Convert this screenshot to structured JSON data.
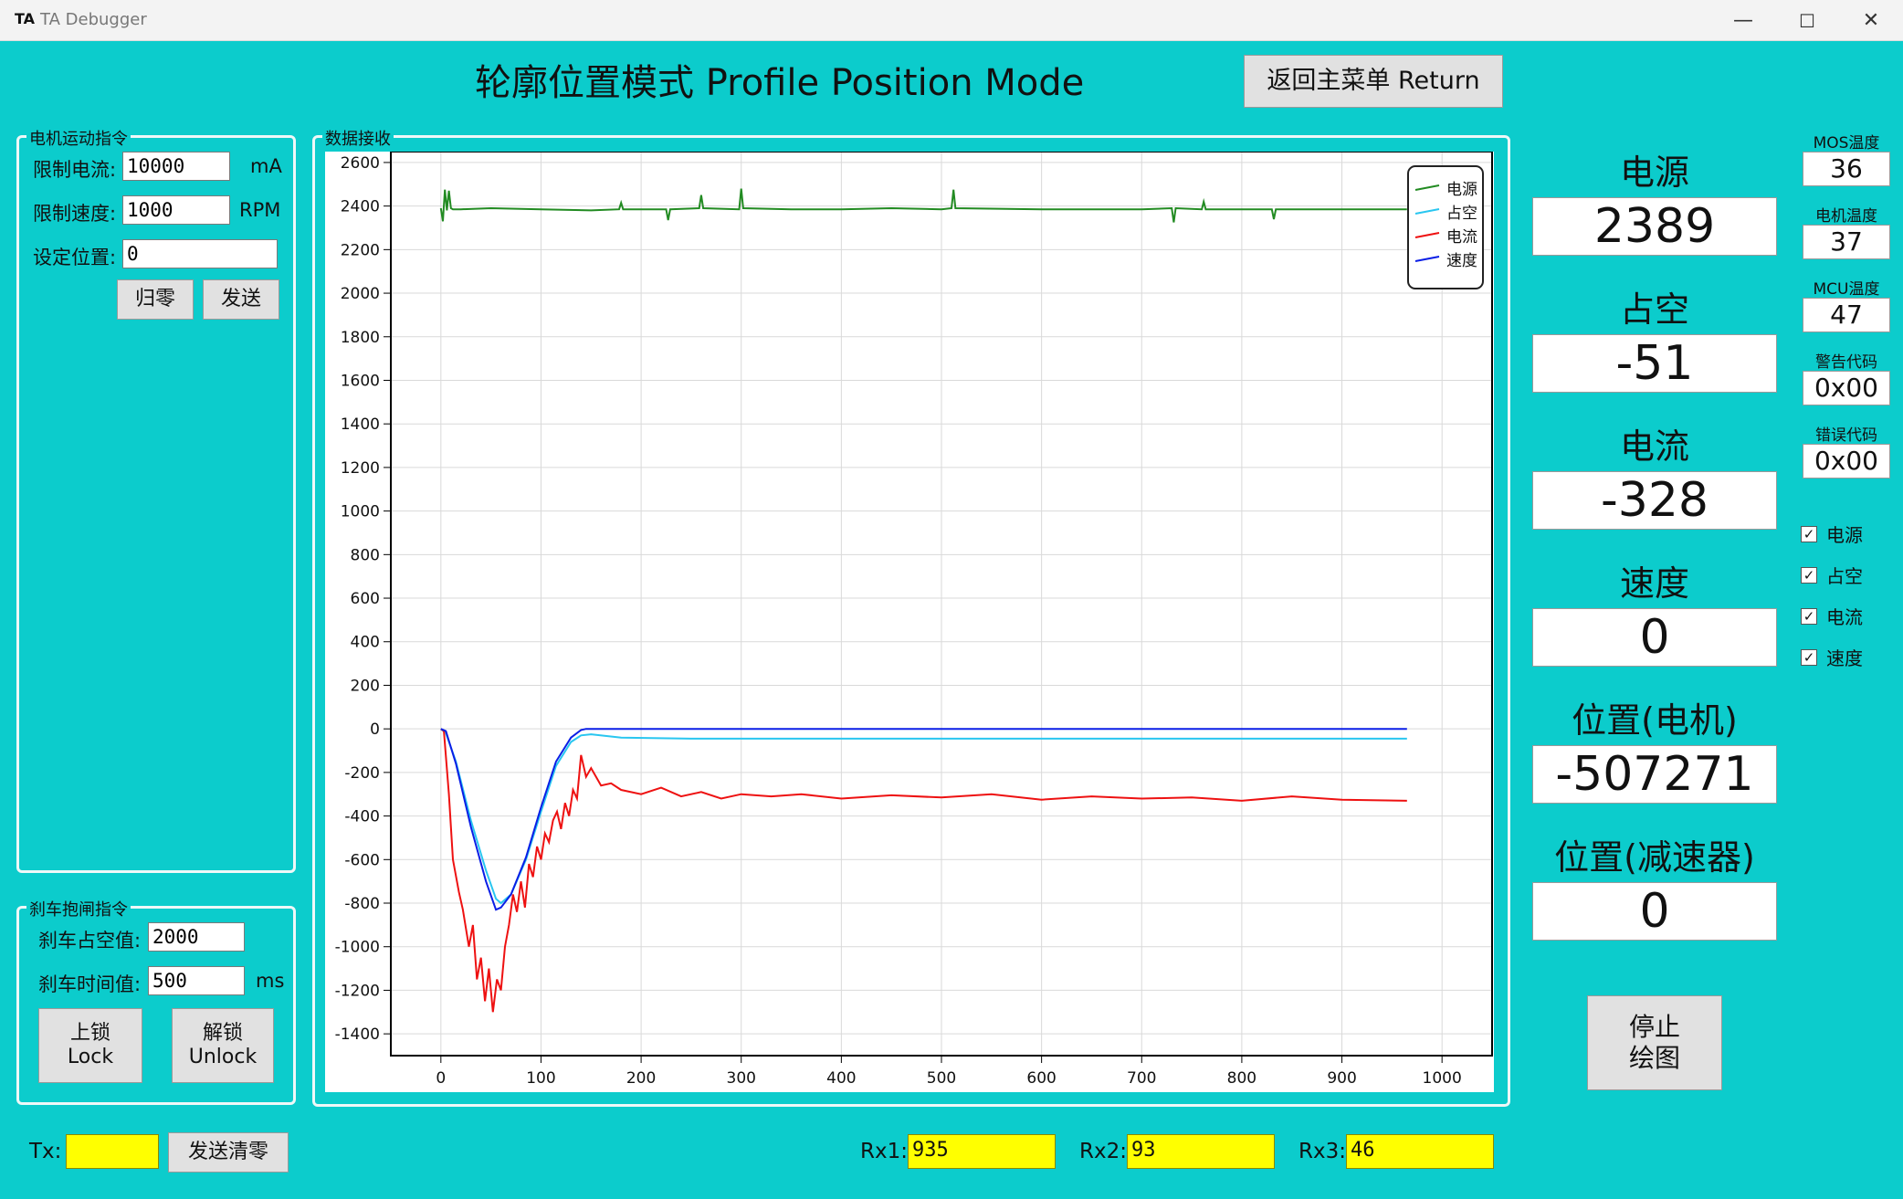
{
  "window": {
    "logo": "TA",
    "title": "TA Debugger",
    "minimize": "—",
    "maximize": "☐",
    "close": "✕"
  },
  "header": {
    "title": "轮廓位置模式 Profile Position Mode",
    "return_button": "返回主菜单 Return"
  },
  "motor_cmd": {
    "group_title": "电机运动指令",
    "current_limit_label": "限制电流:",
    "current_limit_value": "10000",
    "current_unit": "mA",
    "speed_limit_label": "限制速度:",
    "speed_limit_value": "1000",
    "speed_unit": "RPM",
    "position_label": "设定位置:",
    "position_value": "0",
    "zero_button": "归零",
    "send_button": "发送"
  },
  "brake_cmd": {
    "group_title": "刹车抱闸指令",
    "duty_label": "刹车占空值:",
    "duty_value": "2000",
    "time_label": "刹车时间值:",
    "time_value": "500",
    "time_unit": "ms",
    "lock_button_cn": "上锁",
    "lock_button_en": "Lock",
    "unlock_button_cn": "解锁",
    "unlock_button_en": "Unlock"
  },
  "data_group": {
    "title": "数据接收"
  },
  "readouts": [
    {
      "label": "电源",
      "value": "2389"
    },
    {
      "label": "占空",
      "value": "-51"
    },
    {
      "label": "电流",
      "value": "-328"
    },
    {
      "label": "速度",
      "value": "0"
    },
    {
      "label": "位置(电机)",
      "value": "-507271"
    },
    {
      "label": "位置(减速器)",
      "value": "0"
    }
  ],
  "status": [
    {
      "label": "MOS温度",
      "value": "36"
    },
    {
      "label": "电机温度",
      "value": "37"
    },
    {
      "label": "MCU温度",
      "value": "47"
    },
    {
      "label": "警告代码",
      "value": "0x00"
    },
    {
      "label": "错误代码",
      "value": "0x00"
    }
  ],
  "checkboxes": [
    {
      "label": "电源",
      "checked": true
    },
    {
      "label": "占空",
      "checked": true
    },
    {
      "label": "电流",
      "checked": true
    },
    {
      "label": "速度",
      "checked": true
    }
  ],
  "stop_button": {
    "line1": "停止",
    "line2": "绘图"
  },
  "bottom": {
    "tx_label": "Tx:",
    "tx_value": "",
    "clear_button": "发送清零",
    "rx1_label": "Rx1:",
    "rx1_value": "935",
    "rx2_label": "Rx2:",
    "rx2_value": "93",
    "rx3_label": "Rx3:",
    "rx3_value": "46"
  },
  "chart_data": {
    "type": "line",
    "xlim": [
      -50,
      1050
    ],
    "ylim": [
      -1500,
      2650
    ],
    "xticks": [
      0,
      100,
      200,
      300,
      400,
      500,
      600,
      700,
      800,
      900,
      1000
    ],
    "yticks": [
      2600,
      2400,
      2200,
      2000,
      1800,
      1600,
      1400,
      1200,
      1000,
      800,
      600,
      400,
      200,
      0,
      -200,
      -400,
      -600,
      -800,
      -1000,
      -1200,
      -1400
    ],
    "grid": true,
    "legend_position": "top-right",
    "series": [
      {
        "name": "电源",
        "color": "#228b22",
        "x": [
          0,
          2,
          4,
          6,
          8,
          10,
          12,
          20,
          50,
          100,
          150,
          178,
          180,
          182,
          200,
          225,
          227,
          229,
          258,
          260,
          262,
          298,
          300,
          302,
          350,
          400,
          450,
          500,
          510,
          512,
          514,
          600,
          650,
          700,
          730,
          732,
          734,
          760,
          762,
          764,
          830,
          832,
          834,
          900,
          965
        ],
        "values": [
          2390,
          2330,
          2475,
          2380,
          2470,
          2390,
          2385,
          2385,
          2390,
          2385,
          2380,
          2385,
          2415,
          2385,
          2385,
          2385,
          2335,
          2385,
          2390,
          2450,
          2390,
          2385,
          2480,
          2390,
          2385,
          2385,
          2390,
          2385,
          2390,
          2475,
          2390,
          2385,
          2385,
          2385,
          2390,
          2325,
          2390,
          2385,
          2420,
          2385,
          2385,
          2340,
          2385,
          2385,
          2385
        ]
      },
      {
        "name": "占空",
        "color": "#29c6f0",
        "x": [
          0,
          5,
          15,
          30,
          45,
          55,
          60,
          70,
          85,
          100,
          115,
          130,
          140,
          150,
          180,
          250,
          400,
          600,
          800,
          965
        ],
        "values": [
          0,
          -20,
          -150,
          -420,
          -650,
          -780,
          -800,
          -760,
          -600,
          -380,
          -170,
          -60,
          -30,
          -25,
          -40,
          -45,
          -45,
          -45,
          -45,
          -45
        ]
      },
      {
        "name": "电流",
        "color": "#ee1111",
        "x": [
          0,
          3,
          8,
          12,
          18,
          22,
          28,
          32,
          36,
          40,
          44,
          48,
          52,
          56,
          60,
          64,
          68,
          72,
          76,
          80,
          84,
          88,
          92,
          96,
          100,
          104,
          108,
          112,
          116,
          120,
          124,
          128,
          132,
          136,
          140,
          145,
          150,
          160,
          170,
          180,
          200,
          220,
          240,
          260,
          280,
          300,
          330,
          360,
          400,
          450,
          500,
          550,
          600,
          650,
          700,
          750,
          800,
          850,
          900,
          965
        ],
        "values": [
          0,
          -10,
          -300,
          -600,
          -750,
          -830,
          -1000,
          -900,
          -1150,
          -1050,
          -1250,
          -1100,
          -1300,
          -1150,
          -1200,
          -1000,
          -900,
          -760,
          -840,
          -700,
          -820,
          -620,
          -680,
          -540,
          -600,
          -480,
          -520,
          -420,
          -380,
          -460,
          -340,
          -400,
          -280,
          -320,
          -120,
          -220,
          -180,
          -260,
          -250,
          -280,
          -300,
          -270,
          -310,
          -290,
          -320,
          -300,
          -310,
          -300,
          -320,
          -305,
          -315,
          -300,
          -325,
          -310,
          -320,
          -315,
          -330,
          -310,
          -325,
          -330
        ]
      },
      {
        "name": "速度",
        "color": "#0a1ee6",
        "x": [
          0,
          5,
          15,
          30,
          45,
          55,
          60,
          70,
          85,
          100,
          115,
          130,
          140,
          145,
          965
        ],
        "values": [
          0,
          -10,
          -160,
          -450,
          -700,
          -830,
          -820,
          -760,
          -590,
          -360,
          -150,
          -40,
          -5,
          0,
          0
        ]
      }
    ]
  }
}
